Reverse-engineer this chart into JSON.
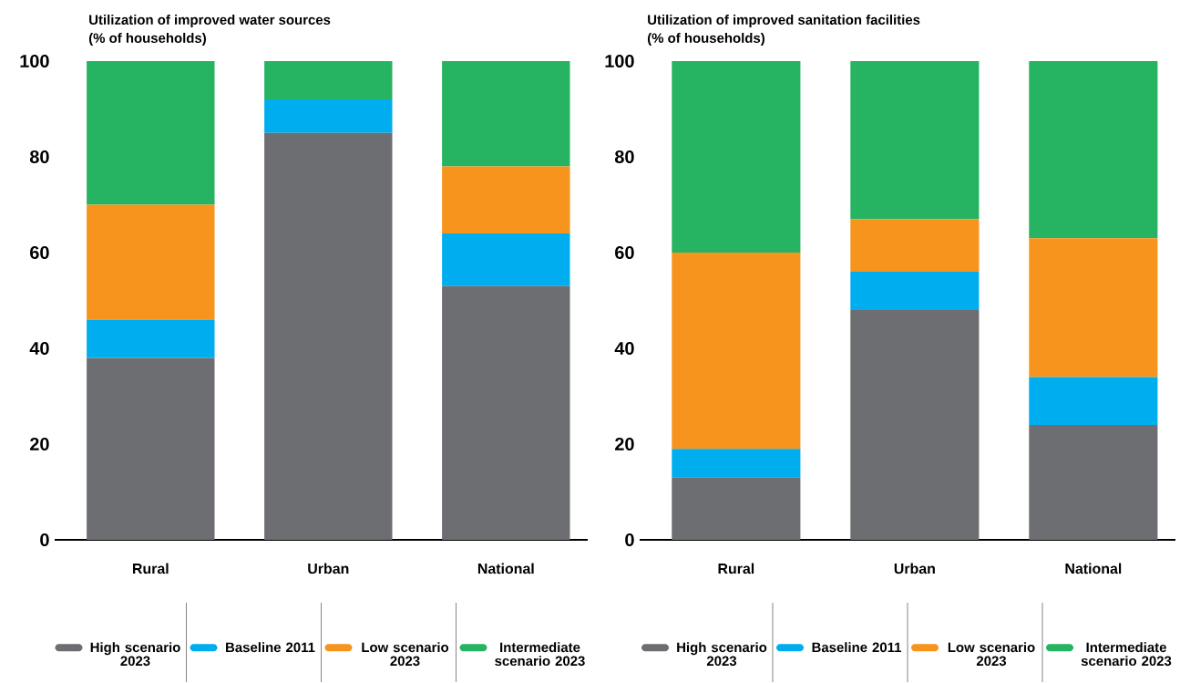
{
  "chart_data": [
    {
      "type": "bar",
      "stacked": true,
      "title": "Utilization of improved water sources",
      "ylabel": "(% of households)",
      "categories": [
        "Rural",
        "Urban",
        "National"
      ],
      "ylim": [
        0,
        100
      ],
      "yticks": [
        0,
        20,
        40,
        60,
        80,
        100
      ],
      "legend": "bottom",
      "series": [
        {
          "name": "High scenario 2023",
          "color": "#6d6e71",
          "values": [
            38,
            85,
            53
          ]
        },
        {
          "name": "Baseline 2011",
          "color": "#00aeef",
          "values": [
            8,
            7,
            11
          ]
        },
        {
          "name": "Low scenario 2023",
          "color": "#f7941d",
          "values": [
            24,
            0,
            14
          ]
        },
        {
          "name": "Intermediate scenario 2023",
          "color": "#26b462",
          "values": [
            30,
            8,
            22
          ]
        }
      ]
    },
    {
      "type": "bar",
      "stacked": true,
      "title": "Utilization of improved sanitation facilities",
      "ylabel": "(% of households)",
      "categories": [
        "Rural",
        "Urban",
        "National"
      ],
      "ylim": [
        0,
        100
      ],
      "yticks": [
        0,
        20,
        40,
        60,
        80,
        100
      ],
      "legend": "bottom",
      "series": [
        {
          "name": "High scenario 2023",
          "color": "#6d6e71",
          "values": [
            13,
            48,
            24
          ]
        },
        {
          "name": "Baseline 2011",
          "color": "#00aeef",
          "values": [
            6,
            8,
            10
          ]
        },
        {
          "name": "Low scenario 2023",
          "color": "#f7941d",
          "values": [
            41,
            11,
            29
          ]
        },
        {
          "name": "Intermediate scenario 2023",
          "color": "#26b462",
          "values": [
            40,
            33,
            37
          ]
        }
      ]
    }
  ]
}
